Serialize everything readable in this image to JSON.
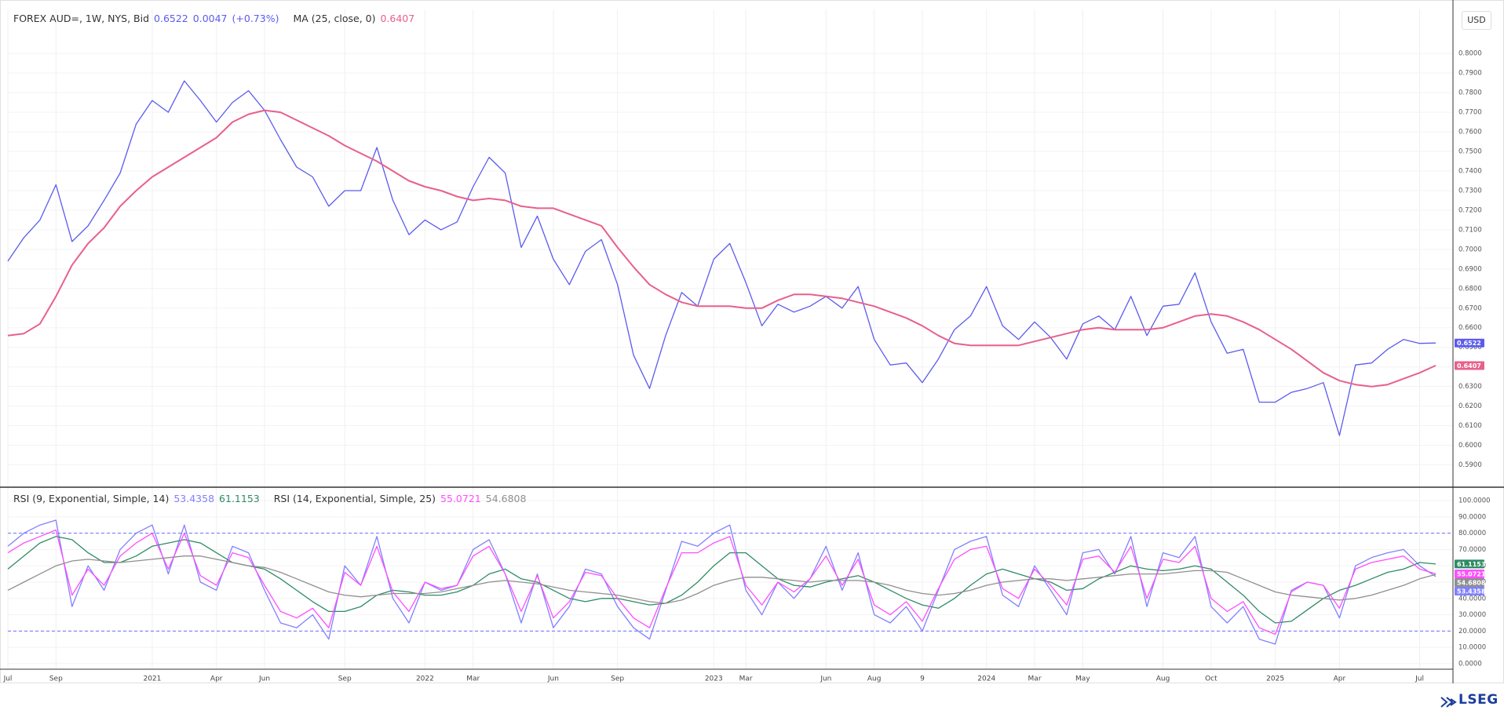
{
  "toolbar": {
    "currency": "USD"
  },
  "brand": "LSEG",
  "chart_data": [
    {
      "type": "line",
      "change": "0.0047",
      "change_label": "(+0.73%)",
      "ylim": [
        0.579,
        0.8225
      ],
      "grid": true,
      "yticks": [
        {
          "value": 0.59,
          "label": "0.5900"
        },
        {
          "value": 0.6,
          "label": "0.6000"
        },
        {
          "value": 0.61,
          "label": "0.6100"
        },
        {
          "value": 0.62,
          "label": "0.6200"
        },
        {
          "value": 0.63,
          "label": "0.6300"
        },
        {
          "value": 0.64,
          "label": "0.6400"
        },
        {
          "value": 0.65,
          "label": "0.6500"
        },
        {
          "value": 0.66,
          "label": "0.6600"
        },
        {
          "value": 0.67,
          "label": "0.6700"
        },
        {
          "value": 0.68,
          "label": "0.6800"
        },
        {
          "value": 0.69,
          "label": "0.6900"
        },
        {
          "value": 0.7,
          "label": "0.7000"
        },
        {
          "value": 0.71,
          "label": "0.7100"
        },
        {
          "value": 0.72,
          "label": "0.7200"
        },
        {
          "value": 0.73,
          "label": "0.7300"
        },
        {
          "value": 0.74,
          "label": "0.7400"
        },
        {
          "value": 0.75,
          "label": "0.7500"
        },
        {
          "value": 0.76,
          "label": "0.7600"
        },
        {
          "value": 0.77,
          "label": "0.7700"
        },
        {
          "value": 0.78,
          "label": "0.7800"
        },
        {
          "value": 0.79,
          "label": "0.7900"
        },
        {
          "value": 0.8,
          "label": "0.8000"
        }
      ],
      "series": [
        {
          "name": "FOREX AUD=, 1W, NYS, Bid",
          "color": "#5b5bef",
          "values": [
            0.694,
            0.706,
            0.715,
            0.733,
            0.704,
            0.712,
            0.725,
            0.739,
            0.764,
            0.776,
            0.77,
            0.786,
            0.776,
            0.765,
            0.775,
            0.781,
            0.771,
            0.756,
            0.742,
            0.737,
            0.722,
            0.73,
            0.73,
            0.752,
            0.725,
            0.7075,
            0.715,
            0.71,
            0.714,
            0.732,
            0.747,
            0.739,
            0.701,
            0.717,
            0.695,
            0.682,
            0.699,
            0.705,
            0.682,
            0.646,
            0.629,
            0.656,
            0.678,
            0.671,
            0.695,
            0.703,
            0.683,
            0.661,
            0.672,
            0.668,
            0.671,
            0.676,
            0.67,
            0.681,
            0.654,
            0.641,
            0.642,
            0.632,
            0.644,
            0.659,
            0.666,
            0.681,
            0.661,
            0.654,
            0.663,
            0.655,
            0.644,
            0.662,
            0.666,
            0.659,
            0.676,
            0.656,
            0.671,
            0.672,
            0.688,
            0.663,
            0.647,
            0.649,
            0.622,
            0.622,
            0.627,
            0.629,
            0.632,
            0.605,
            0.641,
            0.642,
            0.649,
            0.654,
            0.652,
            0.6522
          ]
        },
        {
          "name": "MA (25, close, 0)",
          "color": "#e8608a",
          "values": [
            0.656,
            0.657,
            0.662,
            0.676,
            0.692,
            0.703,
            0.711,
            0.722,
            0.73,
            0.737,
            0.742,
            0.747,
            0.752,
            0.757,
            0.765,
            0.769,
            0.771,
            0.77,
            0.766,
            0.762,
            0.758,
            0.753,
            0.749,
            0.745,
            0.74,
            0.735,
            0.732,
            0.73,
            0.727,
            0.725,
            0.726,
            0.725,
            0.722,
            0.721,
            0.721,
            0.718,
            0.715,
            0.712,
            0.701,
            0.691,
            0.682,
            0.677,
            0.673,
            0.671,
            0.671,
            0.671,
            0.67,
            0.67,
            0.674,
            0.677,
            0.677,
            0.676,
            0.675,
            0.673,
            0.671,
            0.668,
            0.665,
            0.661,
            0.656,
            0.652,
            0.651,
            0.651,
            0.651,
            0.651,
            0.653,
            0.655,
            0.657,
            0.659,
            0.66,
            0.659,
            0.659,
            0.659,
            0.66,
            0.663,
            0.666,
            0.667,
            0.666,
            0.663,
            0.659,
            0.654,
            0.649,
            0.643,
            0.637,
            0.633,
            0.631,
            0.63,
            0.631,
            0.634,
            0.637,
            0.6407
          ]
        }
      ]
    },
    {
      "type": "line",
      "ylim": [
        -3.4,
        108.2
      ],
      "grid": true,
      "levels": [
        80,
        20
      ],
      "yticks": [
        {
          "value": 0,
          "label": "0.0000"
        },
        {
          "value": 10,
          "label": "10.0000"
        },
        {
          "value": 20,
          "label": "20.0000"
        },
        {
          "value": 30,
          "label": "30.0000"
        },
        {
          "value": 40,
          "label": "40.0000"
        },
        {
          "value": 50,
          "label": "50.0000"
        },
        {
          "value": 60,
          "label": "60.0000"
        },
        {
          "value": 70,
          "label": "70.0000"
        },
        {
          "value": 80,
          "label": "80.0000"
        },
        {
          "value": 90,
          "label": "90.0000"
        },
        {
          "value": 100,
          "label": "100.0000"
        }
      ],
      "categories": [
        "Jul",
        null,
        null,
        "Sep",
        null,
        null,
        null,
        null,
        null,
        "2021",
        null,
        null,
        null,
        "Apr",
        null,
        null,
        "Jun",
        null,
        null,
        null,
        null,
        "Sep",
        null,
        null,
        null,
        null,
        "2022",
        null,
        null,
        "Mar",
        null,
        null,
        null,
        null,
        "Jun",
        null,
        null,
        null,
        "Sep",
        null,
        null,
        null,
        null,
        null,
        "2023",
        null,
        "Mar",
        null,
        null,
        null,
        null,
        "Jun",
        null,
        null,
        "Aug",
        null,
        null,
        "9",
        null,
        null,
        null,
        "2024",
        null,
        null,
        "Mar",
        null,
        null,
        "May",
        null,
        null,
        null,
        null,
        "Aug",
        null,
        null,
        "Oct",
        null,
        null,
        null,
        "2025",
        null,
        null,
        null,
        "Apr",
        null,
        null,
        null,
        null,
        "Jul",
        null
      ],
      "series": [
        {
          "name": "RSI (9, Exponential, Simple, 14)",
          "color": "#8080ff",
          "values": [
            72,
            80,
            85,
            88,
            35,
            60,
            45,
            70,
            80,
            85,
            55,
            85,
            50,
            45,
            72,
            68,
            45,
            25,
            22,
            30,
            15,
            60,
            48,
            78,
            40,
            25,
            50,
            45,
            48,
            70,
            76,
            55,
            25,
            55,
            22,
            35,
            58,
            55,
            35,
            22,
            15,
            45,
            75,
            72,
            80,
            85,
            45,
            30,
            50,
            40,
            52,
            72,
            45,
            68,
            30,
            25,
            35,
            20,
            45,
            70,
            75,
            78,
            42,
            35,
            60,
            45,
            30,
            68,
            70,
            55,
            78,
            35,
            68,
            65,
            78,
            35,
            25,
            35,
            15,
            12,
            45,
            50,
            48,
            28,
            60,
            65,
            68,
            70,
            60,
            53.4358
          ]
        },
        {
          "color": "#2e8b64",
          "values": [
            58,
            66,
            74,
            78,
            76,
            68,
            62,
            62,
            66,
            72,
            74,
            76,
            74,
            68,
            62,
            60,
            58,
            52,
            45,
            38,
            32,
            32,
            35,
            42,
            45,
            44,
            42,
            42,
            44,
            48,
            55,
            58,
            52,
            50,
            45,
            40,
            38,
            40,
            40,
            38,
            36,
            37,
            42,
            50,
            60,
            68,
            68,
            60,
            52,
            48,
            47,
            50,
            52,
            54,
            50,
            45,
            40,
            36,
            34,
            40,
            48,
            55,
            58,
            55,
            52,
            50,
            45,
            46,
            52,
            56,
            60,
            58,
            57,
            58,
            60,
            58,
            50,
            42,
            32,
            25,
            26,
            33,
            40,
            45,
            48,
            52,
            56,
            58,
            62,
            61.1153
          ]
        },
        {
          "name": "RSI (14, Exponential, Simple, 25)",
          "color": "#ff4dff",
          "values": [
            68,
            74,
            78,
            82,
            42,
            58,
            48,
            66,
            74,
            80,
            58,
            80,
            54,
            48,
            68,
            65,
            48,
            32,
            28,
            34,
            22,
            56,
            48,
            72,
            44,
            32,
            50,
            46,
            48,
            66,
            72,
            55,
            32,
            54,
            28,
            38,
            56,
            54,
            40,
            28,
            22,
            46,
            68,
            68,
            74,
            78,
            48,
            36,
            50,
            44,
            52,
            66,
            48,
            64,
            36,
            30,
            38,
            26,
            46,
            64,
            70,
            72,
            46,
            40,
            58,
            48,
            36,
            64,
            66,
            56,
            72,
            40,
            64,
            62,
            72,
            40,
            32,
            38,
            22,
            18,
            44,
            50,
            48,
            34,
            58,
            62,
            64,
            66,
            58,
            55.0721
          ]
        },
        {
          "color": "#8f8f8f",
          "values": [
            45,
            50,
            55,
            60,
            63,
            64,
            63,
            62,
            63,
            64,
            65,
            66,
            66,
            64,
            62,
            60,
            59,
            56,
            52,
            48,
            44,
            42,
            41,
            42,
            43,
            43,
            43,
            44,
            46,
            48,
            50,
            51,
            50,
            49,
            47,
            45,
            44,
            43,
            42,
            40,
            38,
            37,
            39,
            43,
            48,
            51,
            53,
            53,
            52,
            51,
            50,
            51,
            51,
            51,
            50,
            48,
            45,
            43,
            42,
            43,
            45,
            48,
            50,
            51,
            52,
            52,
            51,
            52,
            53,
            54,
            55,
            55,
            55,
            56,
            57,
            57,
            56,
            52,
            48,
            44,
            42,
            41,
            40,
            39,
            40,
            42,
            45,
            48,
            52,
            54.6808
          ]
        }
      ]
    }
  ]
}
